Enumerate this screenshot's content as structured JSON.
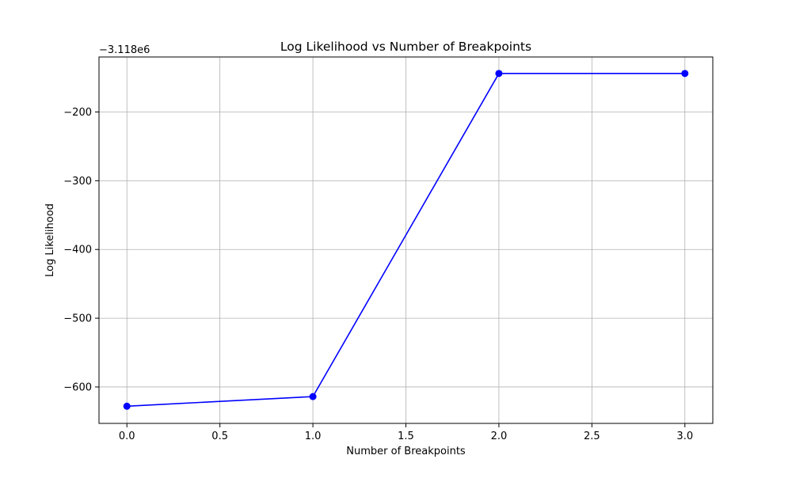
{
  "chart_data": {
    "type": "line",
    "title": "Log Likelihood vs Number of Breakpoints",
    "xlabel": "Number of Breakpoints",
    "ylabel": "Log Likelihood",
    "y_offset_label": "−3.118e6",
    "y_offset": -3118000,
    "xlim": [
      -0.15,
      3.15
    ],
    "ylim": [
      -653,
      -120
    ],
    "x_ticks": [
      0.0,
      0.5,
      1.0,
      1.5,
      2.0,
      2.5,
      3.0
    ],
    "x_tick_labels": [
      "0.0",
      "0.5",
      "1.0",
      "1.5",
      "2.0",
      "2.5",
      "3.0"
    ],
    "y_ticks": [
      -600,
      -500,
      -400,
      -300,
      -200
    ],
    "y_tick_labels": [
      "−600",
      "−500",
      "−400",
      "−300",
      "−200"
    ],
    "grid": true,
    "series": [
      {
        "color": "#0000ff",
        "marker": "circle",
        "x": [
          0,
          1,
          2,
          3
        ],
        "y": [
          -628,
          -614,
          -144,
          -144
        ]
      }
    ]
  }
}
